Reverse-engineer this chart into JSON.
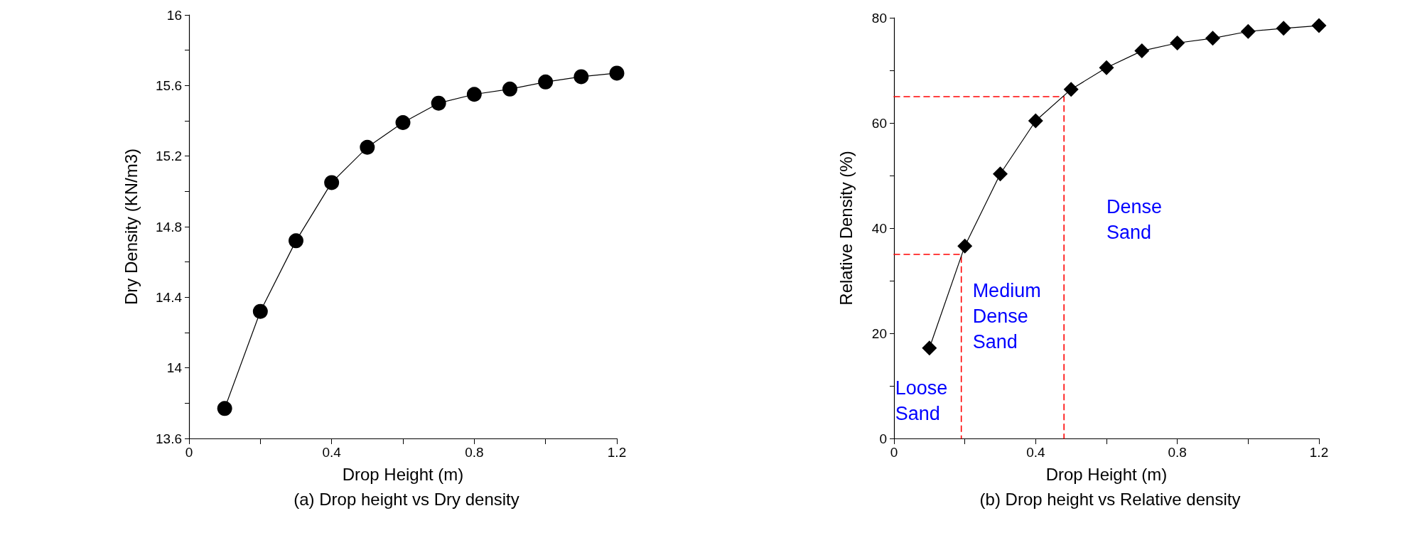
{
  "chart_data": [
    {
      "type": "line",
      "title": "(a) Drop height vs Dry density",
      "xlabel": "Drop Height (m)",
      "ylabel": "Dry Density (KN/m3)",
      "x": [
        0.1,
        0.2,
        0.3,
        0.4,
        0.5,
        0.6,
        0.7,
        0.8,
        0.9,
        1.0,
        1.1,
        1.2
      ],
      "series": [
        {
          "color": "#000000",
          "values": [
            13.77,
            14.32,
            14.72,
            15.05,
            15.25,
            15.39,
            15.5,
            15.55,
            15.58,
            15.62,
            15.65,
            15.67
          ]
        }
      ],
      "marker": "circle",
      "line_style": "solid",
      "grid": false,
      "xlim": [
        0,
        1.2
      ],
      "xticks": [
        0,
        {
          "value": 0.2,
          "label": null
        },
        0.4,
        {
          "value": 0.6,
          "label": null
        },
        0.8,
        {
          "value": 1.0,
          "label": null
        },
        1.2
      ],
      "ylim": [
        13.6,
        16
      ],
      "yticks": [
        13.6,
        {
          "value": 13.8,
          "label": null
        },
        14,
        {
          "value": 14.2,
          "label": null
        },
        14.4,
        {
          "value": 14.6,
          "label": null
        },
        14.8,
        {
          "value": 15.0,
          "label": null
        },
        15.2,
        {
          "value": 15.4,
          "label": null
        },
        15.6,
        {
          "value": 15.8,
          "label": null
        },
        16
      ]
    },
    {
      "type": "line",
      "title": "(b) Drop height vs Relative density",
      "xlabel": "Drop Height (m)",
      "ylabel": "Relative Density (%)",
      "x": [
        0.1,
        0.2,
        0.3,
        0.4,
        0.5,
        0.6,
        0.7,
        0.8,
        0.9,
        1.0,
        1.1,
        1.2
      ],
      "series": [
        {
          "color": "#000000",
          "values": [
            17.2,
            36.6,
            50.3,
            60.4,
            66.4,
            70.5,
            73.7,
            75.2,
            76.1,
            77.4,
            78.0,
            78.5
          ]
        },
        {
          "color": "#ff0000",
          "x": [
            0,
            0.19,
            0.19
          ],
          "values": [
            35,
            35,
            0
          ],
          "marker": "none",
          "line_style": "dashed"
        },
        {
          "color": "#ff0000",
          "x": [
            0,
            0.48,
            0.48
          ],
          "values": [
            65,
            65,
            0
          ],
          "marker": "none",
          "line_style": "dashed"
        }
      ],
      "marker": "diamond",
      "line_style": "solid",
      "grid": false,
      "annotations": [
        "Loose\nSand",
        "Medium\nDense\nSand",
        "Dense\nSand"
      ],
      "xlim": [
        0,
        1.2
      ],
      "xticks": [
        0,
        {
          "value": 0.2,
          "label": null
        },
        0.4,
        {
          "value": 0.6,
          "label": null
        },
        0.8,
        {
          "value": 1.0,
          "label": null
        },
        1.2
      ],
      "ylim": [
        0,
        80
      ],
      "yticks": [
        0,
        {
          "value": 10,
          "label": null
        },
        20,
        {
          "value": 30,
          "label": null
        },
        40,
        {
          "value": 50,
          "label": null
        },
        60,
        {
          "value": 70,
          "label": null
        },
        80
      ]
    }
  ]
}
